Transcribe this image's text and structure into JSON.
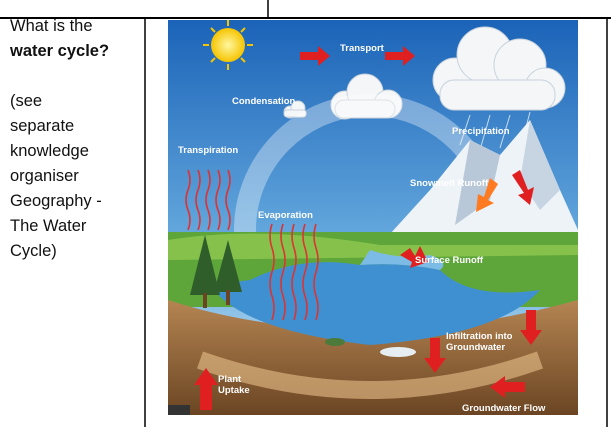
{
  "question": {
    "lines": [
      "What is the"
    ],
    "bold": "water cycle?",
    "note_lines": [
      "(see",
      "separate",
      "knowledge",
      "organiser",
      "Geography -",
      "The Water",
      "Cycle)"
    ]
  },
  "diagram": {
    "labels": [
      {
        "lines": [
          "Transport"
        ]
      },
      {
        "lines": [
          "Condensation"
        ]
      },
      {
        "lines": [
          "Precipitation"
        ]
      },
      {
        "lines": [
          "Transpiration"
        ]
      },
      {
        "lines": [
          "Snowmelt Runoff"
        ]
      },
      {
        "lines": [
          "Evaporation"
        ]
      },
      {
        "lines": [
          "Surface Runoff"
        ]
      },
      {
        "lines": [
          "Infiltration into",
          "Groundwater"
        ]
      },
      {
        "lines": [
          "Plant",
          "Uptake"
        ]
      },
      {
        "lines": [
          "Groundwater Flow"
        ]
      }
    ]
  }
}
